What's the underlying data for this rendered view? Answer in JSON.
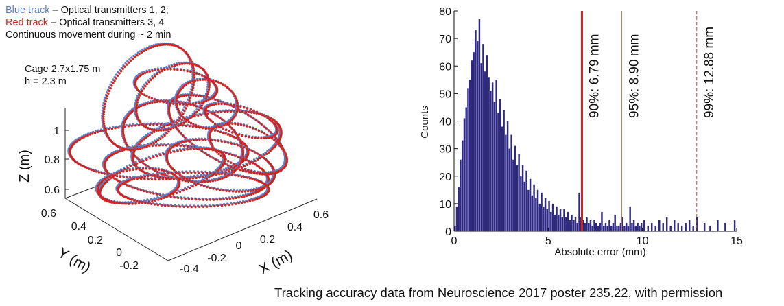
{
  "legend": {
    "line1_colored": "Blue track",
    "line1_rest": " – Optical transmitters 1, 2;",
    "line2_colored": "Red track",
    "line2_rest": " – Optical transmitters 3, 4",
    "line3": "Continuous movement during ~ 2 min",
    "blue_color": "#5b7fc4",
    "red_color": "#d2231f"
  },
  "cage": {
    "line1": "Cage 2.7x1.75 m",
    "line2": "h = 2.3 m"
  },
  "plot3d": {
    "zlabel": "Z (m)",
    "ylabel": "Y (m)",
    "xlabel": "X (m)",
    "z_ticks": [
      "1",
      "0.8",
      "0.6"
    ],
    "y_ticks": [
      "0.6",
      "0.4",
      "0.2",
      "0",
      "-0.2"
    ],
    "x_ticks": [
      "-0.4",
      "-0.2",
      "0",
      "0.2",
      "0.4",
      "0.6"
    ]
  },
  "caption": "Tracking accuracy data from Neuroscience 2017 poster 235.22, with permission",
  "chart_data": {
    "type": "bar",
    "xlabel": "Absolute error (mm)",
    "ylabel": "Counts",
    "xlim": [
      0,
      15
    ],
    "ylim": [
      0,
      80
    ],
    "x_ticks": [
      0,
      5,
      10,
      15
    ],
    "y_ticks": [
      0,
      10,
      20,
      30,
      40,
      50,
      60,
      70,
      80
    ],
    "bar_color": "#2e2a84",
    "bin_width": 0.1,
    "series": [
      {
        "x": [
          0.05,
          0.15,
          0.25,
          0.35,
          0.45,
          0.55,
          0.65,
          0.75,
          0.85,
          0.95,
          1.05,
          1.15,
          1.25,
          1.35,
          1.45,
          1.55,
          1.65,
          1.75,
          1.85,
          1.95,
          2.05,
          2.15,
          2.25,
          2.35,
          2.45,
          2.55,
          2.65,
          2.75,
          2.85,
          2.95,
          3.05,
          3.15,
          3.25,
          3.35,
          3.45,
          3.55,
          3.65,
          3.75,
          3.85,
          3.95,
          4.05,
          4.15,
          4.25,
          4.35,
          4.45,
          4.55,
          4.65,
          4.75,
          4.85,
          4.95,
          5.05,
          5.15,
          5.25,
          5.35,
          5.45,
          5.55,
          5.65,
          5.75,
          5.85,
          5.95,
          6.05,
          6.15,
          6.25,
          6.35,
          6.45,
          6.55,
          6.65,
          6.75,
          6.85,
          6.95,
          7.05,
          7.15,
          7.25,
          7.35,
          7.45,
          7.55,
          7.65,
          7.75,
          7.85,
          7.95,
          8.05,
          8.15,
          8.25,
          8.35,
          8.45,
          8.55,
          8.65,
          8.75,
          8.85,
          8.95,
          9.05,
          9.15,
          9.25,
          9.35,
          9.45,
          9.55,
          9.65,
          9.75,
          9.85,
          9.95,
          10.1,
          10.3,
          10.5,
          10.7,
          10.9,
          11.1,
          11.3,
          11.5,
          11.7,
          11.9,
          12.1,
          12.3,
          12.5,
          12.7,
          12.9,
          13.3,
          13.6,
          14.0,
          14.4,
          14.9
        ],
        "values": [
          2,
          9,
          16,
          26,
          33,
          41,
          45,
          52,
          55,
          62,
          65,
          73,
          69,
          77,
          61,
          68,
          58,
          64,
          56,
          51,
          54,
          47,
          55,
          43,
          48,
          38,
          44,
          35,
          40,
          30,
          35,
          26,
          31,
          24,
          28,
          20,
          24,
          18,
          22,
          15,
          19,
          13,
          17,
          12,
          15,
          10,
          14,
          9,
          12,
          8,
          11,
          7,
          10,
          6,
          9,
          6,
          8,
          5,
          8,
          5,
          7,
          4,
          6,
          4,
          5,
          3,
          14,
          5,
          4,
          3,
          5,
          3,
          4,
          2,
          4,
          3,
          2,
          3,
          7,
          2,
          3,
          2,
          4,
          2,
          3,
          6,
          2,
          2,
          3,
          5,
          2,
          3,
          2,
          9,
          3,
          4,
          2,
          3,
          2,
          3,
          4,
          2,
          3,
          2,
          4,
          3,
          5,
          2,
          4,
          3,
          2,
          3,
          4,
          2,
          5,
          3,
          2,
          4,
          3,
          4
        ]
      }
    ],
    "annotations": [
      {
        "x": 6.79,
        "label": "90%: 6.79 mm",
        "color": "#d2231f",
        "style": "solid-thick"
      },
      {
        "x": 8.9,
        "label": "95%: 8.90 mm",
        "color": "#b5764e",
        "style": "solid-thin"
      },
      {
        "x": 12.88,
        "label": "99%: 12.88 mm",
        "color": "#c0433f",
        "style": "dashed"
      }
    ],
    "grid": false
  }
}
